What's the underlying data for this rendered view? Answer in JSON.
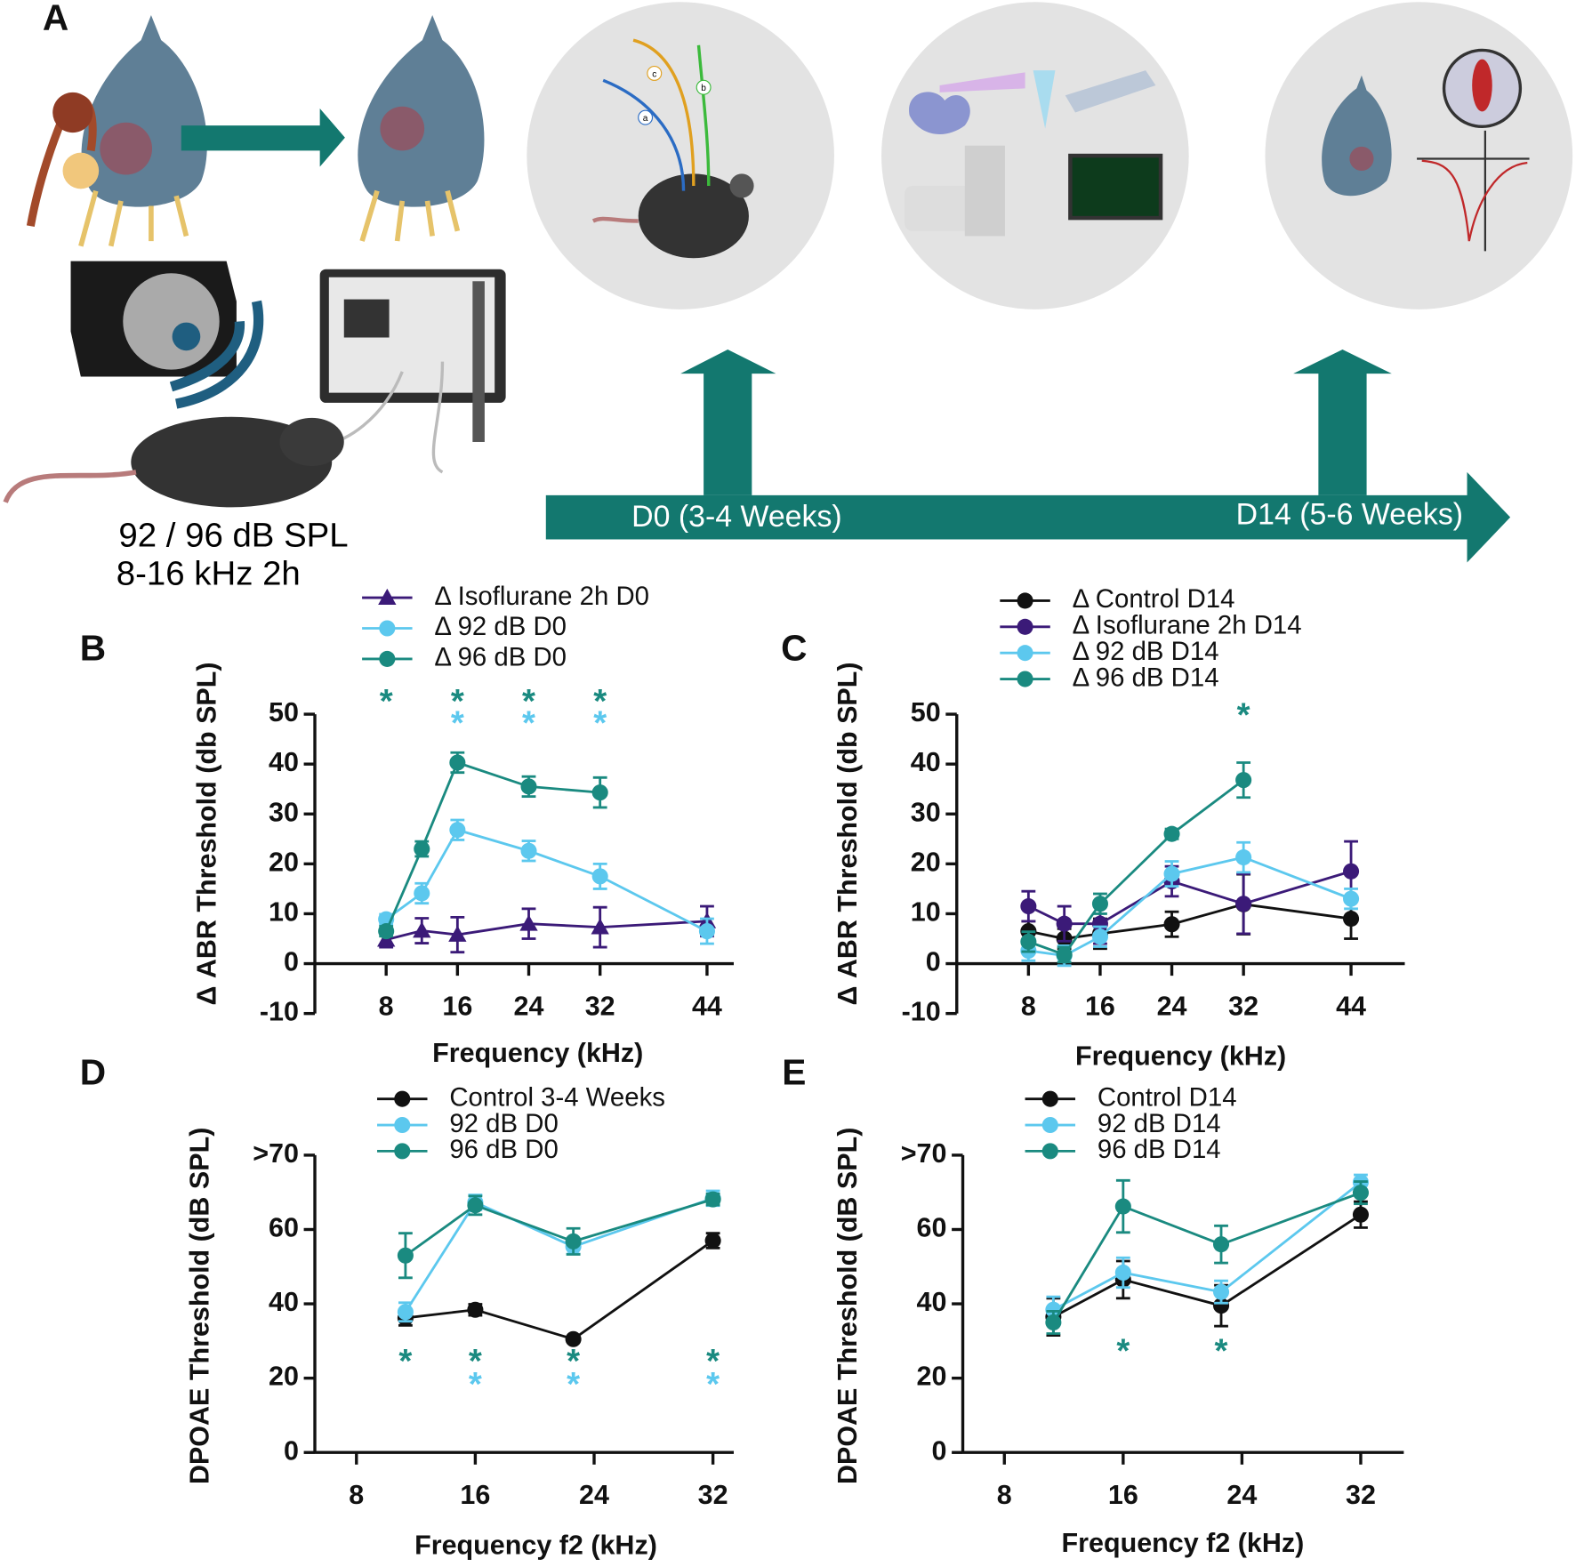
{
  "panel_a": {
    "label": "A",
    "exposure_lines": [
      "92 / 96 dB SPL",
      "8-16 kHz 2h"
    ],
    "timeline": [
      "D0 (3-4 Weeks)",
      "D14 (5-6 Weeks)"
    ],
    "electrode_labels": [
      "a",
      "b",
      "c"
    ]
  },
  "chart_data": [
    {
      "type": "line",
      "panel": "B",
      "x_label": "Frequency (kHz)",
      "y_label": "Δ ABR Threshold (db SPL)",
      "x": [
        8,
        12,
        16,
        24,
        32,
        44
      ],
      "xlim": [
        0,
        47
      ],
      "xticks": [
        8,
        16,
        24,
        32,
        44
      ],
      "ylim": [
        -10,
        50
      ],
      "yticks": [
        -10,
        0,
        10,
        20,
        30,
        40,
        50
      ],
      "series": [
        {
          "name": "Δ Isoflurane 2h D0",
          "color": "#3b1a78",
          "marker": "triangle",
          "values": [
            4.8,
            6.6,
            5.8,
            8,
            7.3,
            8.5
          ],
          "errors": [
            1.5,
            2.5,
            3.5,
            3,
            4,
            3
          ]
        },
        {
          "name": "Δ 92 dB D0",
          "color": "#5cc8ee",
          "marker": "circle",
          "values": [
            8.9,
            14.1,
            26.8,
            22.6,
            17.5,
            6.5
          ],
          "errors": [
            1,
            2,
            2,
            2,
            2.5,
            2.5
          ]
        },
        {
          "name": "Δ 96 dB D0",
          "color": "#1a8a80",
          "marker": "circle",
          "values": [
            6.5,
            23,
            40.3,
            35.5,
            34.3,
            null
          ],
          "errors": [
            1,
            1.5,
            2,
            2,
            3,
            null
          ]
        }
      ],
      "annotations": [
        {
          "text": "*",
          "x": 8,
          "color": "#1a8a80"
        },
        {
          "text": "*",
          "x": 16,
          "color": "#1a8a80"
        },
        {
          "text": "*",
          "x": 24,
          "color": "#1a8a80"
        },
        {
          "text": "*",
          "x": 32,
          "color": "#1a8a80"
        },
        {
          "text": "*",
          "x": 16,
          "color": "#5cc8ee"
        },
        {
          "text": "*",
          "x": 24,
          "color": "#5cc8ee"
        },
        {
          "text": "*",
          "x": 32,
          "color": "#5cc8ee"
        }
      ]
    },
    {
      "type": "line",
      "panel": "C",
      "x_label": "Frequency (kHz)",
      "y_label": "Δ ABR Threshold (db SPL)",
      "x": [
        8,
        12,
        16,
        24,
        32,
        44
      ],
      "xlim": [
        0,
        50
      ],
      "xticks": [
        8,
        16,
        24,
        32,
        44
      ],
      "ylim": [
        -10,
        50
      ],
      "yticks": [
        -10,
        0,
        10,
        20,
        30,
        40,
        50
      ],
      "series": [
        {
          "name": "Δ Control D14",
          "color": "#111111",
          "marker": "circle",
          "values": [
            6.5,
            5,
            6,
            7.9,
            11.9,
            9
          ],
          "errors": [
            2,
            2,
            3,
            2.5,
            6,
            4
          ]
        },
        {
          "name": "Δ Isoflurane 2h D14",
          "color": "#3b1a78",
          "marker": "circle",
          "values": [
            11.5,
            8,
            8,
            16.5,
            12,
            18.5
          ],
          "errors": [
            3,
            3.5,
            4,
            3,
            6,
            6
          ]
        },
        {
          "name": "Δ 92 dB D14",
          "color": "#5cc8ee",
          "marker": "circle",
          "values": [
            2.6,
            1.6,
            5.4,
            18,
            21.3,
            13
          ],
          "errors": [
            2,
            2,
            2,
            2.5,
            3,
            2
          ]
        },
        {
          "name": "Δ 96 dB D14",
          "color": "#1a8a80",
          "marker": "circle",
          "values": [
            4.4,
            1.8,
            12,
            26,
            36.8,
            null
          ],
          "errors": [
            2,
            1.5,
            2,
            1,
            3.5,
            null
          ]
        }
      ],
      "annotations": [
        {
          "text": "*",
          "x": 32,
          "color": "#1a8a80"
        }
      ]
    },
    {
      "type": "line",
      "panel": "D",
      "x_label": "Frequency f2 (kHz)",
      "y_label": "DPOAE Threshold (dB SPL)",
      "x": [
        11.3,
        16,
        22.6,
        32
      ],
      "xlim": [
        5.2,
        33.4
      ],
      "xticks": [
        8,
        16,
        24,
        32
      ],
      "ylim": [
        0,
        80
      ],
      "yticks": [
        0,
        20,
        40,
        60,
        {
          "value": 80,
          "label": ">70"
        }
      ],
      "series": [
        {
          "name": "Control 3-4 Weeks",
          "color": "#111111",
          "marker": "circle",
          "values": [
            36.2,
            38.4,
            30.5,
            57
          ],
          "errors": [
            2,
            1.5,
            0.5,
            2
          ]
        },
        {
          "name": "92 dB D0",
          "color": "#5cc8ee",
          "marker": "circle",
          "values": [
            37.8,
            67.3,
            55.4,
            68.4
          ],
          "errors": [
            2.5,
            2,
            2,
            2
          ]
        },
        {
          "name": "96 dB D0",
          "color": "#1a8a80",
          "marker": "circle",
          "values": [
            53,
            66.5,
            56.8,
            68.1
          ],
          "errors": [
            6,
            2.5,
            3.5,
            1.5
          ]
        }
      ],
      "annotations": [
        {
          "text": "*",
          "x": 11.3,
          "color": "#1a8a80"
        },
        {
          "text": "*",
          "x": 16,
          "color": "#1a8a80"
        },
        {
          "text": "*",
          "x": 22.6,
          "color": "#1a8a80"
        },
        {
          "text": "*",
          "x": 32,
          "color": "#1a8a80"
        },
        {
          "text": "*",
          "x": 16,
          "color": "#5cc8ee"
        },
        {
          "text": "*",
          "x": 22.6,
          "color": "#5cc8ee"
        },
        {
          "text": "*",
          "x": 32,
          "color": "#5cc8ee"
        }
      ]
    },
    {
      "type": "line",
      "panel": "E",
      "x_label": "Frequency f2 (kHz)",
      "y_label": "DPOAE Threshold (dB SPL)",
      "x": [
        11.3,
        16,
        22.6,
        32
      ],
      "xlim": [
        5.2,
        34.9
      ],
      "xticks": [
        8,
        16,
        24,
        32
      ],
      "ylim": [
        0,
        80
      ],
      "yticks": [
        0,
        20,
        40,
        60,
        {
          "value": 80,
          "label": ">70"
        }
      ],
      "series": [
        {
          "name": "Control D14",
          "color": "#111111",
          "marker": "circle",
          "values": [
            36.5,
            46.5,
            39.5,
            64
          ],
          "errors": [
            5,
            5,
            5.5,
            3.5
          ]
        },
        {
          "name": "92 dB D14",
          "color": "#5cc8ee",
          "marker": "circle",
          "values": [
            38.4,
            48.4,
            43.2,
            72.7
          ],
          "errors": [
            3.5,
            4,
            3,
            2
          ]
        },
        {
          "name": "96 dB D14",
          "color": "#1a8a80",
          "marker": "circle",
          "values": [
            35,
            66.2,
            56,
            69.9
          ],
          "errors": [
            3,
            7,
            5,
            3
          ]
        }
      ],
      "annotations": [
        {
          "text": "*",
          "x": 16,
          "color": "#1a8a80"
        },
        {
          "text": "*",
          "x": 22.6,
          "color": "#1a8a80"
        }
      ]
    }
  ]
}
